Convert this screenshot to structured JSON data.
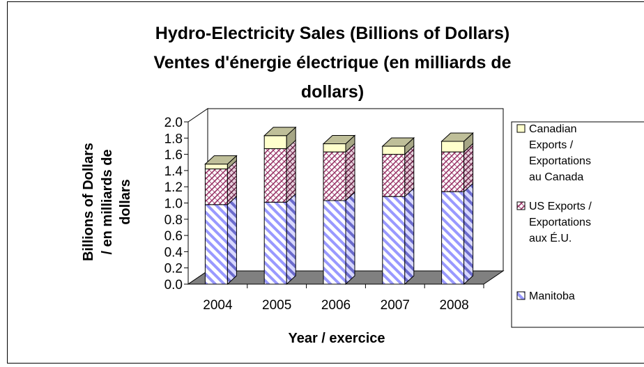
{
  "chart_data": {
    "type": "bar",
    "stacked": true,
    "three_d": true,
    "title_lines": [
      "Hydro-Electricity Sales (Billions of Dollars)",
      "Ventes d'énergie électrique (en milliards de",
      "dollars)"
    ],
    "xlabel": "Year / exercice",
    "ylabel_lines": [
      "Billions of Dollars",
      "/ en milliards de",
      "dollars"
    ],
    "ylim": [
      0,
      2.0
    ],
    "yticks": [
      "0.0",
      "0.2",
      "0.4",
      "0.6",
      "0.8",
      "1.0",
      "1.2",
      "1.4",
      "1.6",
      "1.8",
      "2.0"
    ],
    "categories": [
      "2004",
      "2005",
      "2006",
      "2007",
      "2008"
    ],
    "series": [
      {
        "name": "Manitoba",
        "values": [
          0.98,
          1.01,
          1.03,
          1.08,
          1.14
        ],
        "color": "#9999ff",
        "pattern": "diagonal-stripes"
      },
      {
        "name": "US Exports / Exportations aux É.U.",
        "values": [
          0.44,
          0.66,
          0.6,
          0.52,
          0.49
        ],
        "color": "#993366",
        "pattern": "crosshatch"
      },
      {
        "name": "Canadian Exports / Exportations au Canada",
        "values": [
          0.06,
          0.16,
          0.1,
          0.1,
          0.13
        ],
        "color": "#ffffcc",
        "pattern": "solid"
      }
    ],
    "legend": {
      "placement": "right",
      "entries": [
        {
          "series": 2,
          "lines": [
            "Canadian",
            "Exports /",
            "Exportations",
            "au Canada"
          ]
        },
        {
          "series": 1,
          "lines": [
            "US Exports /",
            "Exportations",
            "aux É.U."
          ]
        },
        {
          "series": 0,
          "lines": [
            "Manitoba"
          ]
        }
      ]
    },
    "grid": false
  }
}
